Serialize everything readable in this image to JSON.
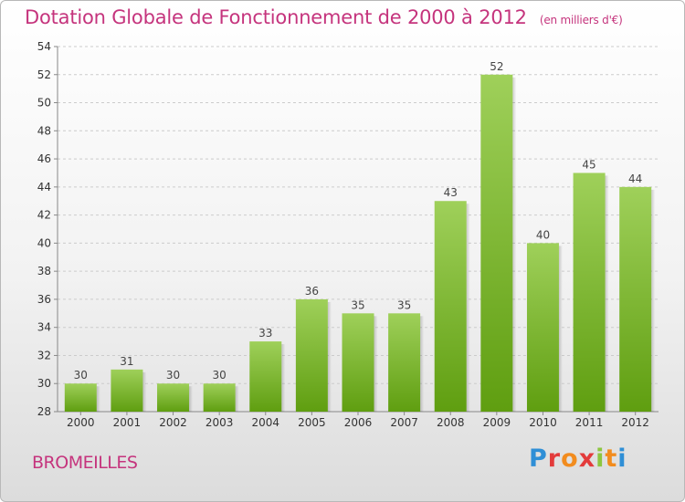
{
  "header": {
    "title": "Dotation Globale de Fonctionnement de 2000 à 2012",
    "subtitle": "(en milliers d'€)"
  },
  "footer": {
    "commune": "BROMEILLES",
    "logo": "Proxiti"
  },
  "colors": {
    "title": "#c5347d",
    "bar_top": "#9fd05a",
    "bar_bottom": "#5f9e10",
    "grid": "#cccccc"
  },
  "chart_data": {
    "type": "bar",
    "categories": [
      "2000",
      "2001",
      "2002",
      "2003",
      "2004",
      "2005",
      "2006",
      "2007",
      "2008",
      "2009",
      "2010",
      "2011",
      "2012"
    ],
    "values": [
      30,
      31,
      30,
      30,
      33,
      36,
      35,
      35,
      43,
      52,
      40,
      45,
      44
    ],
    "title": "Dotation Globale de Fonctionnement de 2000 à 2012",
    "ylim": [
      28,
      54
    ],
    "yticks": [
      28,
      30,
      32,
      34,
      36,
      38,
      40,
      42,
      44,
      46,
      48,
      50,
      52,
      54
    ],
    "grid": true,
    "data_labels": true
  }
}
